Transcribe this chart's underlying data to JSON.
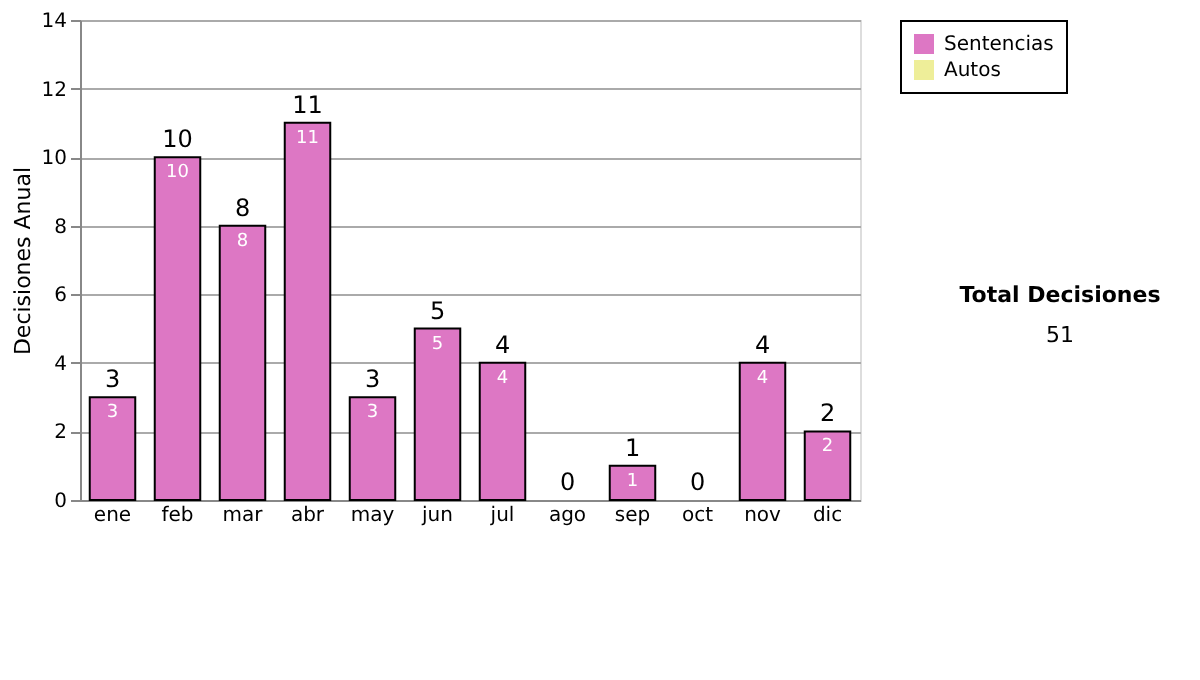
{
  "chart_data": {
    "type": "bar",
    "stacked": true,
    "ylabel": "Decisiones Anual",
    "categories": [
      "ene",
      "feb",
      "mar",
      "abr",
      "may",
      "jun",
      "jul",
      "ago",
      "sep",
      "oct",
      "nov",
      "dic"
    ],
    "series": [
      {
        "name": "Sentencias",
        "color": "#dd77c4",
        "values": [
          3,
          10,
          8,
          11,
          3,
          5,
          4,
          0,
          1,
          0,
          4,
          2
        ],
        "value_labels": [
          "3",
          "10",
          "8",
          "11",
          "3",
          "5",
          "4",
          null,
          "1",
          null,
          "4",
          "2"
        ]
      },
      {
        "name": "Autos",
        "color": "#eeee99",
        "values": [
          0,
          0,
          0,
          0,
          0,
          0,
          0,
          0,
          0,
          0,
          0,
          0
        ]
      }
    ],
    "totals": [
      "3",
      "10",
      "8",
      "11",
      "3",
      "5",
      "4",
      "0",
      "1",
      "0",
      "4",
      "2"
    ],
    "ylim": [
      0,
      14
    ],
    "yticks": [
      0,
      2,
      4,
      6,
      8,
      10,
      12,
      14
    ],
    "grid": "y",
    "legend": "right",
    "annotations": [
      "Total Decisiones",
      "51"
    ]
  }
}
